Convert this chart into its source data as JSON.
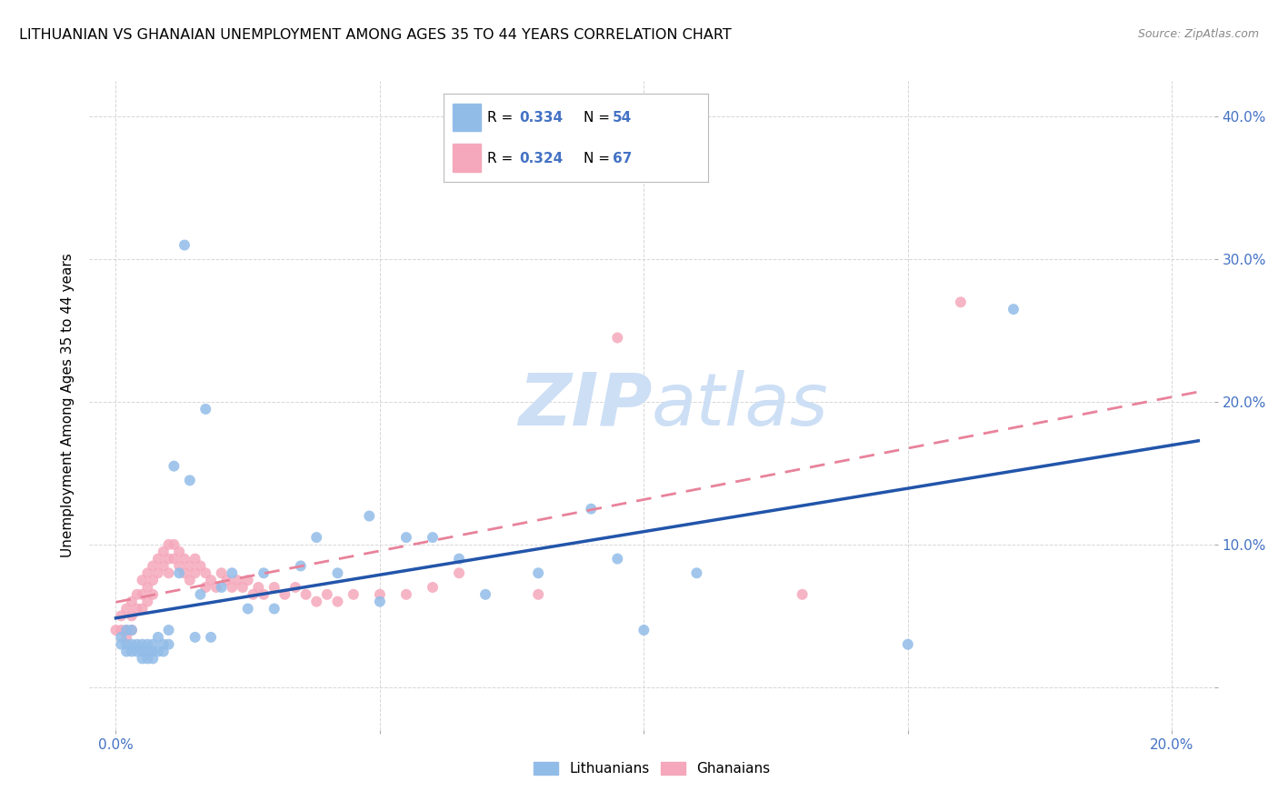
{
  "title": "LITHUANIAN VS GHANAIAN UNEMPLOYMENT AMONG AGES 35 TO 44 YEARS CORRELATION CHART",
  "source": "Source: ZipAtlas.com",
  "xlabel_ticks": [
    "0.0%",
    "",
    "",
    "",
    "20.0%"
  ],
  "xlabel_tick_vals": [
    0.0,
    0.05,
    0.1,
    0.15,
    0.2
  ],
  "ylabel_ticks": [
    "",
    "10.0%",
    "20.0%",
    "30.0%",
    "40.0%"
  ],
  "ylabel_tick_vals": [
    0.0,
    0.1,
    0.2,
    0.3,
    0.4
  ],
  "ylabel": "Unemployment Among Ages 35 to 44 years",
  "xlim": [
    -0.005,
    0.208
  ],
  "ylim": [
    -0.03,
    0.425
  ],
  "blue_R": "0.334",
  "blue_N": "54",
  "pink_R": "0.324",
  "pink_N": "67",
  "blue_color": "#92bce8",
  "pink_color": "#f5a8bb",
  "blue_line_color": "#2255aa",
  "pink_line_color": "#e8829a",
  "watermark_color": "#cddff5",
  "grid_color": "#cccccc",
  "background_color": "#ffffff",
  "tick_color": "#4472c4",
  "blue_scatter_x": [
    0.001,
    0.001,
    0.002,
    0.002,
    0.002,
    0.003,
    0.003,
    0.003,
    0.004,
    0.004,
    0.005,
    0.005,
    0.005,
    0.006,
    0.006,
    0.006,
    0.007,
    0.007,
    0.007,
    0.008,
    0.008,
    0.009,
    0.009,
    0.01,
    0.01,
    0.011,
    0.012,
    0.013,
    0.014,
    0.015,
    0.016,
    0.017,
    0.018,
    0.02,
    0.022,
    0.025,
    0.028,
    0.03,
    0.035,
    0.038,
    0.042,
    0.048,
    0.05,
    0.055,
    0.06,
    0.065,
    0.07,
    0.08,
    0.09,
    0.095,
    0.1,
    0.11,
    0.15,
    0.17
  ],
  "blue_scatter_y": [
    0.035,
    0.03,
    0.04,
    0.03,
    0.025,
    0.04,
    0.03,
    0.025,
    0.03,
    0.025,
    0.03,
    0.025,
    0.02,
    0.03,
    0.025,
    0.02,
    0.03,
    0.025,
    0.02,
    0.035,
    0.025,
    0.03,
    0.025,
    0.04,
    0.03,
    0.155,
    0.08,
    0.31,
    0.145,
    0.035,
    0.065,
    0.195,
    0.035,
    0.07,
    0.08,
    0.055,
    0.08,
    0.055,
    0.085,
    0.105,
    0.08,
    0.12,
    0.06,
    0.105,
    0.105,
    0.09,
    0.065,
    0.08,
    0.125,
    0.09,
    0.04,
    0.08,
    0.03,
    0.265
  ],
  "pink_scatter_x": [
    0.0,
    0.001,
    0.001,
    0.002,
    0.002,
    0.002,
    0.003,
    0.003,
    0.003,
    0.004,
    0.004,
    0.005,
    0.005,
    0.005,
    0.006,
    0.006,
    0.006,
    0.007,
    0.007,
    0.007,
    0.008,
    0.008,
    0.009,
    0.009,
    0.01,
    0.01,
    0.01,
    0.011,
    0.011,
    0.012,
    0.012,
    0.013,
    0.013,
    0.014,
    0.014,
    0.015,
    0.015,
    0.016,
    0.017,
    0.017,
    0.018,
    0.019,
    0.02,
    0.021,
    0.022,
    0.023,
    0.024,
    0.025,
    0.026,
    0.027,
    0.028,
    0.03,
    0.032,
    0.034,
    0.036,
    0.038,
    0.04,
    0.042,
    0.045,
    0.05,
    0.055,
    0.06,
    0.065,
    0.08,
    0.095,
    0.13,
    0.16
  ],
  "pink_scatter_y": [
    0.04,
    0.05,
    0.04,
    0.055,
    0.04,
    0.035,
    0.06,
    0.05,
    0.04,
    0.065,
    0.055,
    0.075,
    0.065,
    0.055,
    0.08,
    0.07,
    0.06,
    0.085,
    0.075,
    0.065,
    0.09,
    0.08,
    0.095,
    0.085,
    0.1,
    0.09,
    0.08,
    0.1,
    0.09,
    0.095,
    0.085,
    0.09,
    0.08,
    0.085,
    0.075,
    0.09,
    0.08,
    0.085,
    0.08,
    0.07,
    0.075,
    0.07,
    0.08,
    0.075,
    0.07,
    0.075,
    0.07,
    0.075,
    0.065,
    0.07,
    0.065,
    0.07,
    0.065,
    0.07,
    0.065,
    0.06,
    0.065,
    0.06,
    0.065,
    0.065,
    0.065,
    0.07,
    0.08,
    0.065,
    0.245,
    0.065,
    0.27
  ]
}
